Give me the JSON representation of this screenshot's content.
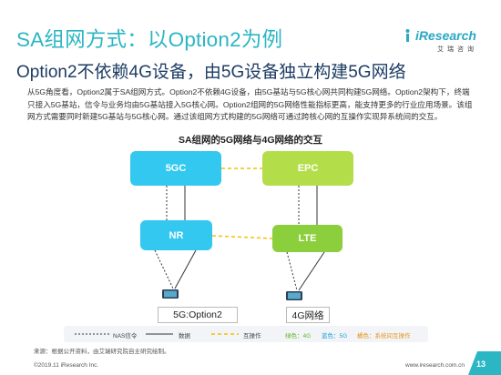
{
  "title": "SA组网方式：以Option2为例",
  "subtitle": "Option2不依赖4G设备，由5G设备独立构建5G网络",
  "logo": {
    "text": "iResearch",
    "sub": "艾瑞咨询"
  },
  "body_text": "从5G角度看，Option2属于SA组网方式。Option2不依赖4G设备，由5G基站与5G核心网共同构建5G网络。Option2架构下，终端只接入5G基站，信令与业务均由5G基站接入5G核心网。Option2组网的5G网络性能指标更高，能支持更多的行业应用场景。该组网方式需要同时新建5G基站与5G核心网。通过该组网方式构建的5G网络可通过跨核心网的互操作实现异系统间的交互。",
  "diagram": {
    "title": "SA组网的5G网络与4G网络的交互",
    "nodes": {
      "core_5g": "5GC",
      "core_4g": "EPC",
      "ran_5g": "NR",
      "ran_4g": "LTE"
    },
    "devices": {
      "five_g": "5G:Option2",
      "four_g": "4G网络"
    },
    "legend": {
      "nas": "NAS信令",
      "data": "数据",
      "interop": "互操作",
      "green": "绿色：4G",
      "blue": "蓝色：5G",
      "yellow": "橘色：系统间互操作"
    }
  },
  "source": "来源：根据公开资料，由艾瑞研究院自主研究绘制。",
  "footer": {
    "left": "©2019.11 iResearch Inc.",
    "right": "www.iresearch.com.cn",
    "page": "13"
  },
  "colors": {
    "title": "#2bb6c4",
    "subtitle": "#1e3c64",
    "blue_5g": "#33c8ef",
    "green_4g": "#8ccf3c",
    "epc_green": "#b4dd4a",
    "interop_yellow": "#f2c200",
    "legend_green": "#62b52c",
    "legend_blue": "#1ea1d6",
    "legend_orange": "#e8951e",
    "page_badge": "#2bb6c4"
  }
}
